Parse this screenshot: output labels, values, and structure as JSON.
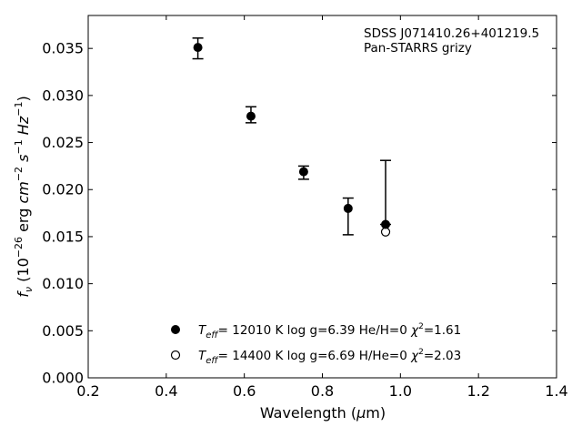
{
  "chart_data": {
    "type": "scatter",
    "title": "",
    "xlabel": "Wavelength (μm)",
    "ylabel": "f_ν (10^-26 erg cm^-2 s^-1 Hz^-1)",
    "xlim": [
      0.2,
      1.4
    ],
    "ylim": [
      0.0,
      0.0385
    ],
    "xticks": [
      0.2,
      0.4,
      0.6,
      0.8,
      1.0,
      1.2,
      1.4
    ],
    "xtick_labels": [
      "0.2",
      "0.4",
      "0.6",
      "0.8",
      "1.0",
      "1.2",
      "1.4"
    ],
    "yticks": [
      0.0,
      0.005,
      0.01,
      0.015,
      0.02,
      0.025,
      0.03,
      0.035
    ],
    "ytick_labels": [
      "0.000",
      "0.005",
      "0.010",
      "0.015",
      "0.020",
      "0.025",
      "0.030",
      "0.035"
    ],
    "grid": false,
    "annotations": [
      "SDSS J071410.26+401219.5",
      "Pan-STARRS grizy"
    ],
    "observed": {
      "x": [
        0.481,
        0.617,
        0.752,
        0.866,
        0.962
      ],
      "y": [
        0.0351,
        0.0278,
        0.0219,
        0.0181,
        0.0163
      ],
      "yerr_low": [
        0.0012,
        0.0007,
        0.0008,
        0.0029,
        0.0
      ],
      "yerr_high": [
        0.001,
        0.001,
        0.0006,
        0.001,
        0.0068
      ]
    },
    "series": [
      {
        "name": "Teff= 12010 K  log g=6.39  He/H=0  χ2=1.61",
        "marker": "filled-circle",
        "x": [
          0.481,
          0.617,
          0.752,
          0.866,
          0.962
        ],
        "y": [
          0.0351,
          0.0278,
          0.0219,
          0.018,
          0.0163
        ]
      },
      {
        "name": "Teff= 14400 K  log g=6.69  H/He=0  χ2=2.03",
        "marker": "open-circle",
        "x": [
          0.962
        ],
        "y": [
          0.0155
        ]
      }
    ],
    "legend": {
      "placement": "lower-center",
      "entries": [
        {
          "teff": "12010",
          "logg": "6.39",
          "comp_label": "He/H=0",
          "chi2": "1.61"
        },
        {
          "teff": "14400",
          "logg": "6.69",
          "comp_label": "H/He=0",
          "chi2": "2.03"
        }
      ]
    },
    "colors": {
      "marker": "#000000",
      "axis": "#000000",
      "background": "#ffffff"
    }
  }
}
